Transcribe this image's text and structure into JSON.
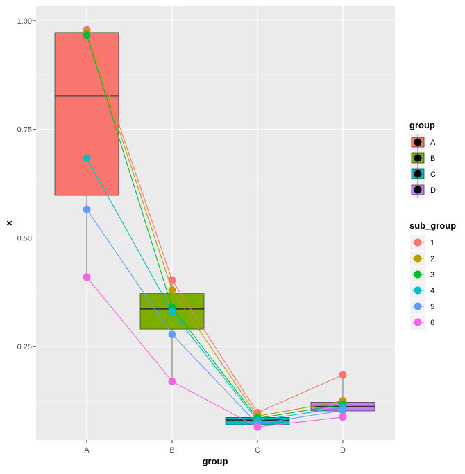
{
  "chart_data": {
    "type": "box",
    "xlabel": "group",
    "ylabel": "x",
    "categories": [
      "A",
      "B",
      "C",
      "D"
    ],
    "y_ticks": [
      0.25,
      0.5,
      0.75,
      1.0
    ],
    "y_tick_labels": [
      "0.25",
      "0.50",
      "0.75",
      "1.00"
    ],
    "ylim": [
      0.035,
      1.035
    ],
    "grid": true,
    "boxes": [
      {
        "group": "A",
        "min": 0.41,
        "q1": 0.598,
        "median": 0.827,
        "q3": 0.973,
        "max": 0.979,
        "color": "#F8766D"
      },
      {
        "group": "B",
        "min": 0.17,
        "q1": 0.29,
        "median": 0.337,
        "q3": 0.372,
        "max": 0.403,
        "color": "#7CAE00"
      },
      {
        "group": "C",
        "min": 0.065,
        "q1": 0.07,
        "median": 0.081,
        "q3": 0.087,
        "max": 0.098,
        "color": "#00BFC4"
      },
      {
        "group": "D",
        "min": 0.088,
        "q1": 0.102,
        "median": 0.112,
        "q3": 0.122,
        "max": 0.185,
        "color": "#C77CFF"
      }
    ],
    "series": [
      {
        "name": "1",
        "color": "#F8766D",
        "values": [
          0.979,
          0.403,
          0.098,
          0.185
        ]
      },
      {
        "name": "2",
        "color": "#B79F00",
        "values": [
          0.972,
          0.38,
          0.09,
          0.125
        ]
      },
      {
        "name": "3",
        "color": "#00BA38",
        "values": [
          0.967,
          0.34,
          0.085,
          0.117
        ]
      },
      {
        "name": "4",
        "color": "#00BFC4",
        "values": [
          0.684,
          0.33,
          0.08,
          0.11
        ]
      },
      {
        "name": "5",
        "color": "#619CFF",
        "values": [
          0.566,
          0.278,
          0.072,
          0.103
        ]
      },
      {
        "name": "6",
        "color": "#F564E3",
        "values": [
          0.41,
          0.17,
          0.065,
          0.088
        ]
      }
    ],
    "legends": [
      {
        "title": "group",
        "position": "right",
        "entries": [
          "A",
          "B",
          "C",
          "D"
        ],
        "colors": [
          "#F8766D",
          "#7CAE00",
          "#00BFC4",
          "#C77CFF"
        ]
      },
      {
        "title": "sub_group",
        "position": "right",
        "entries": [
          "1",
          "2",
          "3",
          "4",
          "5",
          "6"
        ],
        "colors": [
          "#F8766D",
          "#B79F00",
          "#00BA38",
          "#00BFC4",
          "#619CFF",
          "#F564E3"
        ]
      }
    ]
  }
}
